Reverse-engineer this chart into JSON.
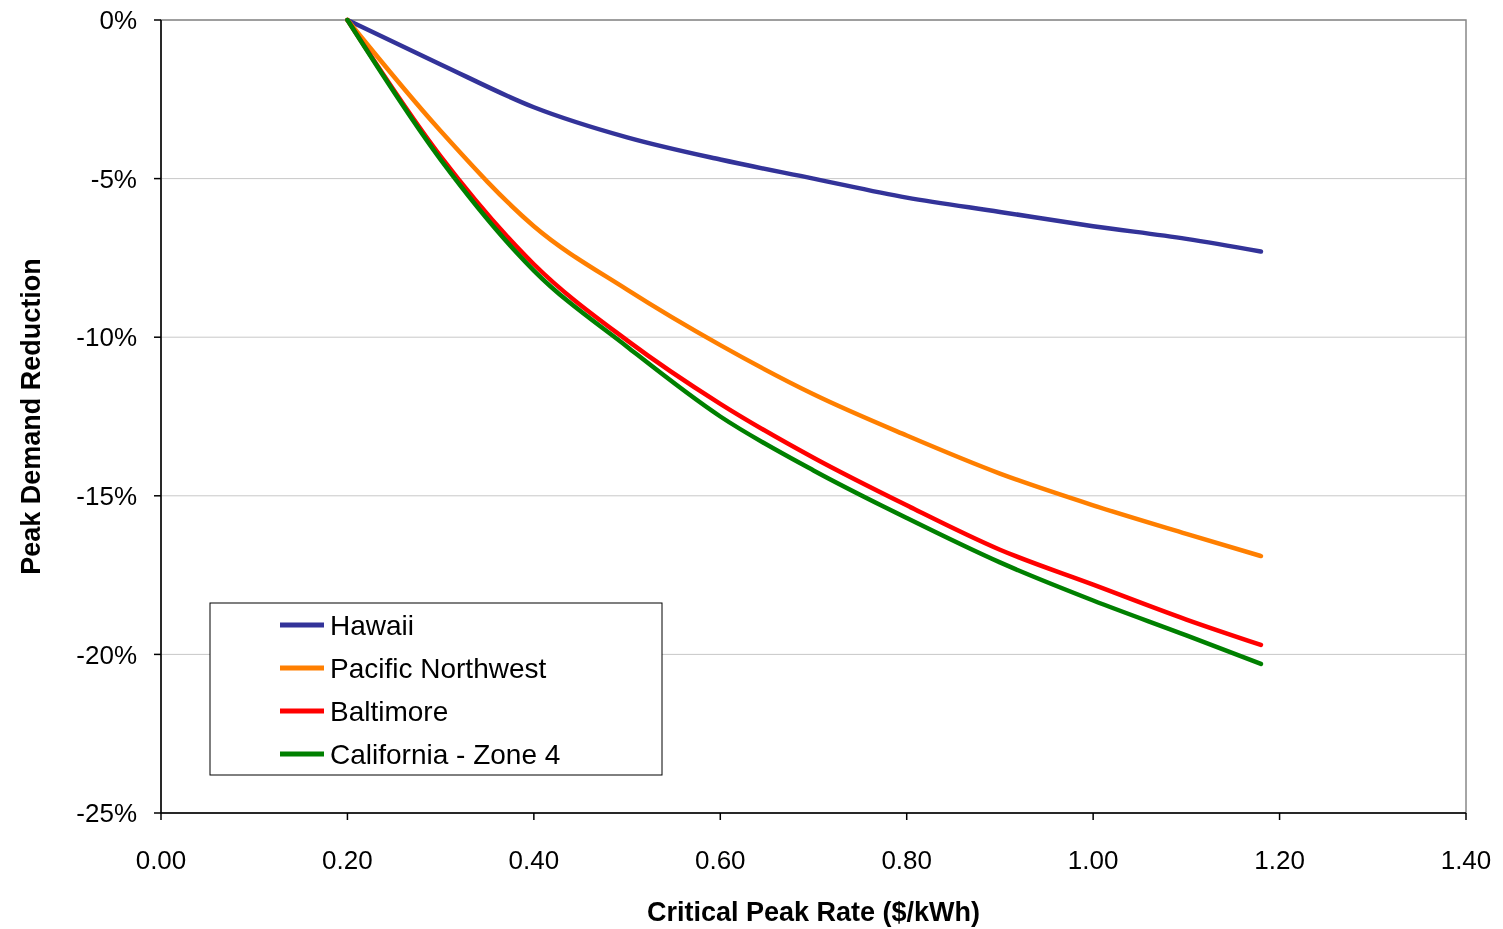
{
  "chart_data": {
    "type": "line",
    "xlabel": "Critical Peak Rate ($/kWh)",
    "ylabel": "Peak Demand Reduction",
    "xlim": [
      0,
      1.4
    ],
    "xticks": [
      {
        "value": 0,
        "label": "0.00"
      },
      {
        "value": 0.2,
        "label": "0.20"
      },
      {
        "value": 0.4,
        "label": "0.40"
      },
      {
        "value": 0.6,
        "label": "0.60"
      },
      {
        "value": 0.8,
        "label": "0.80"
      },
      {
        "value": 1,
        "label": "1.00"
      },
      {
        "value": 1.2,
        "label": "1.20"
      },
      {
        "value": 1.4,
        "label": "1.40"
      }
    ],
    "ylim": [
      -25,
      0
    ],
    "yticks": [
      {
        "value": -25,
        "label": "-25%"
      },
      {
        "value": -20,
        "label": "-20%"
      },
      {
        "value": -15,
        "label": "-15%"
      },
      {
        "value": -10,
        "label": "-10%"
      },
      {
        "value": -5,
        "label": "-5%"
      },
      {
        "value": 0,
        "label": "0%"
      }
    ],
    "grid": "y",
    "legend": "bottom left",
    "marker": "none",
    "line_style": "solid",
    "x": [
      0.2,
      0.3,
      0.4,
      0.5,
      0.6,
      0.7,
      0.8,
      0.9,
      1.0,
      1.1,
      1.18
    ],
    "series": [
      {
        "name": "Hawaii",
        "color": "#333399",
        "values": [
          0,
          -1.4,
          -2.75,
          -3.7,
          -4.4,
          -5.0,
          -5.6,
          -6.05,
          -6.5,
          -6.9,
          -7.3
        ]
      },
      {
        "name": "Pacific Northwest",
        "color": "#ff7f00",
        "values": [
          0,
          -3.5,
          -6.5,
          -8.5,
          -10.25,
          -11.8,
          -13.1,
          -14.3,
          -15.3,
          -16.2,
          -16.9
        ]
      },
      {
        "name": "Baltimore",
        "color": "#ff0000",
        "values": [
          0,
          -4.3,
          -7.7,
          -10.1,
          -12.1,
          -13.8,
          -15.3,
          -16.7,
          -17.8,
          -18.9,
          -19.7
        ]
      },
      {
        "name": "California - Zone 4",
        "color": "#008000",
        "values": [
          0,
          -4.4,
          -7.9,
          -10.3,
          -12.5,
          -14.2,
          -15.7,
          -17.1,
          -18.3,
          -19.4,
          -20.3
        ]
      }
    ]
  }
}
